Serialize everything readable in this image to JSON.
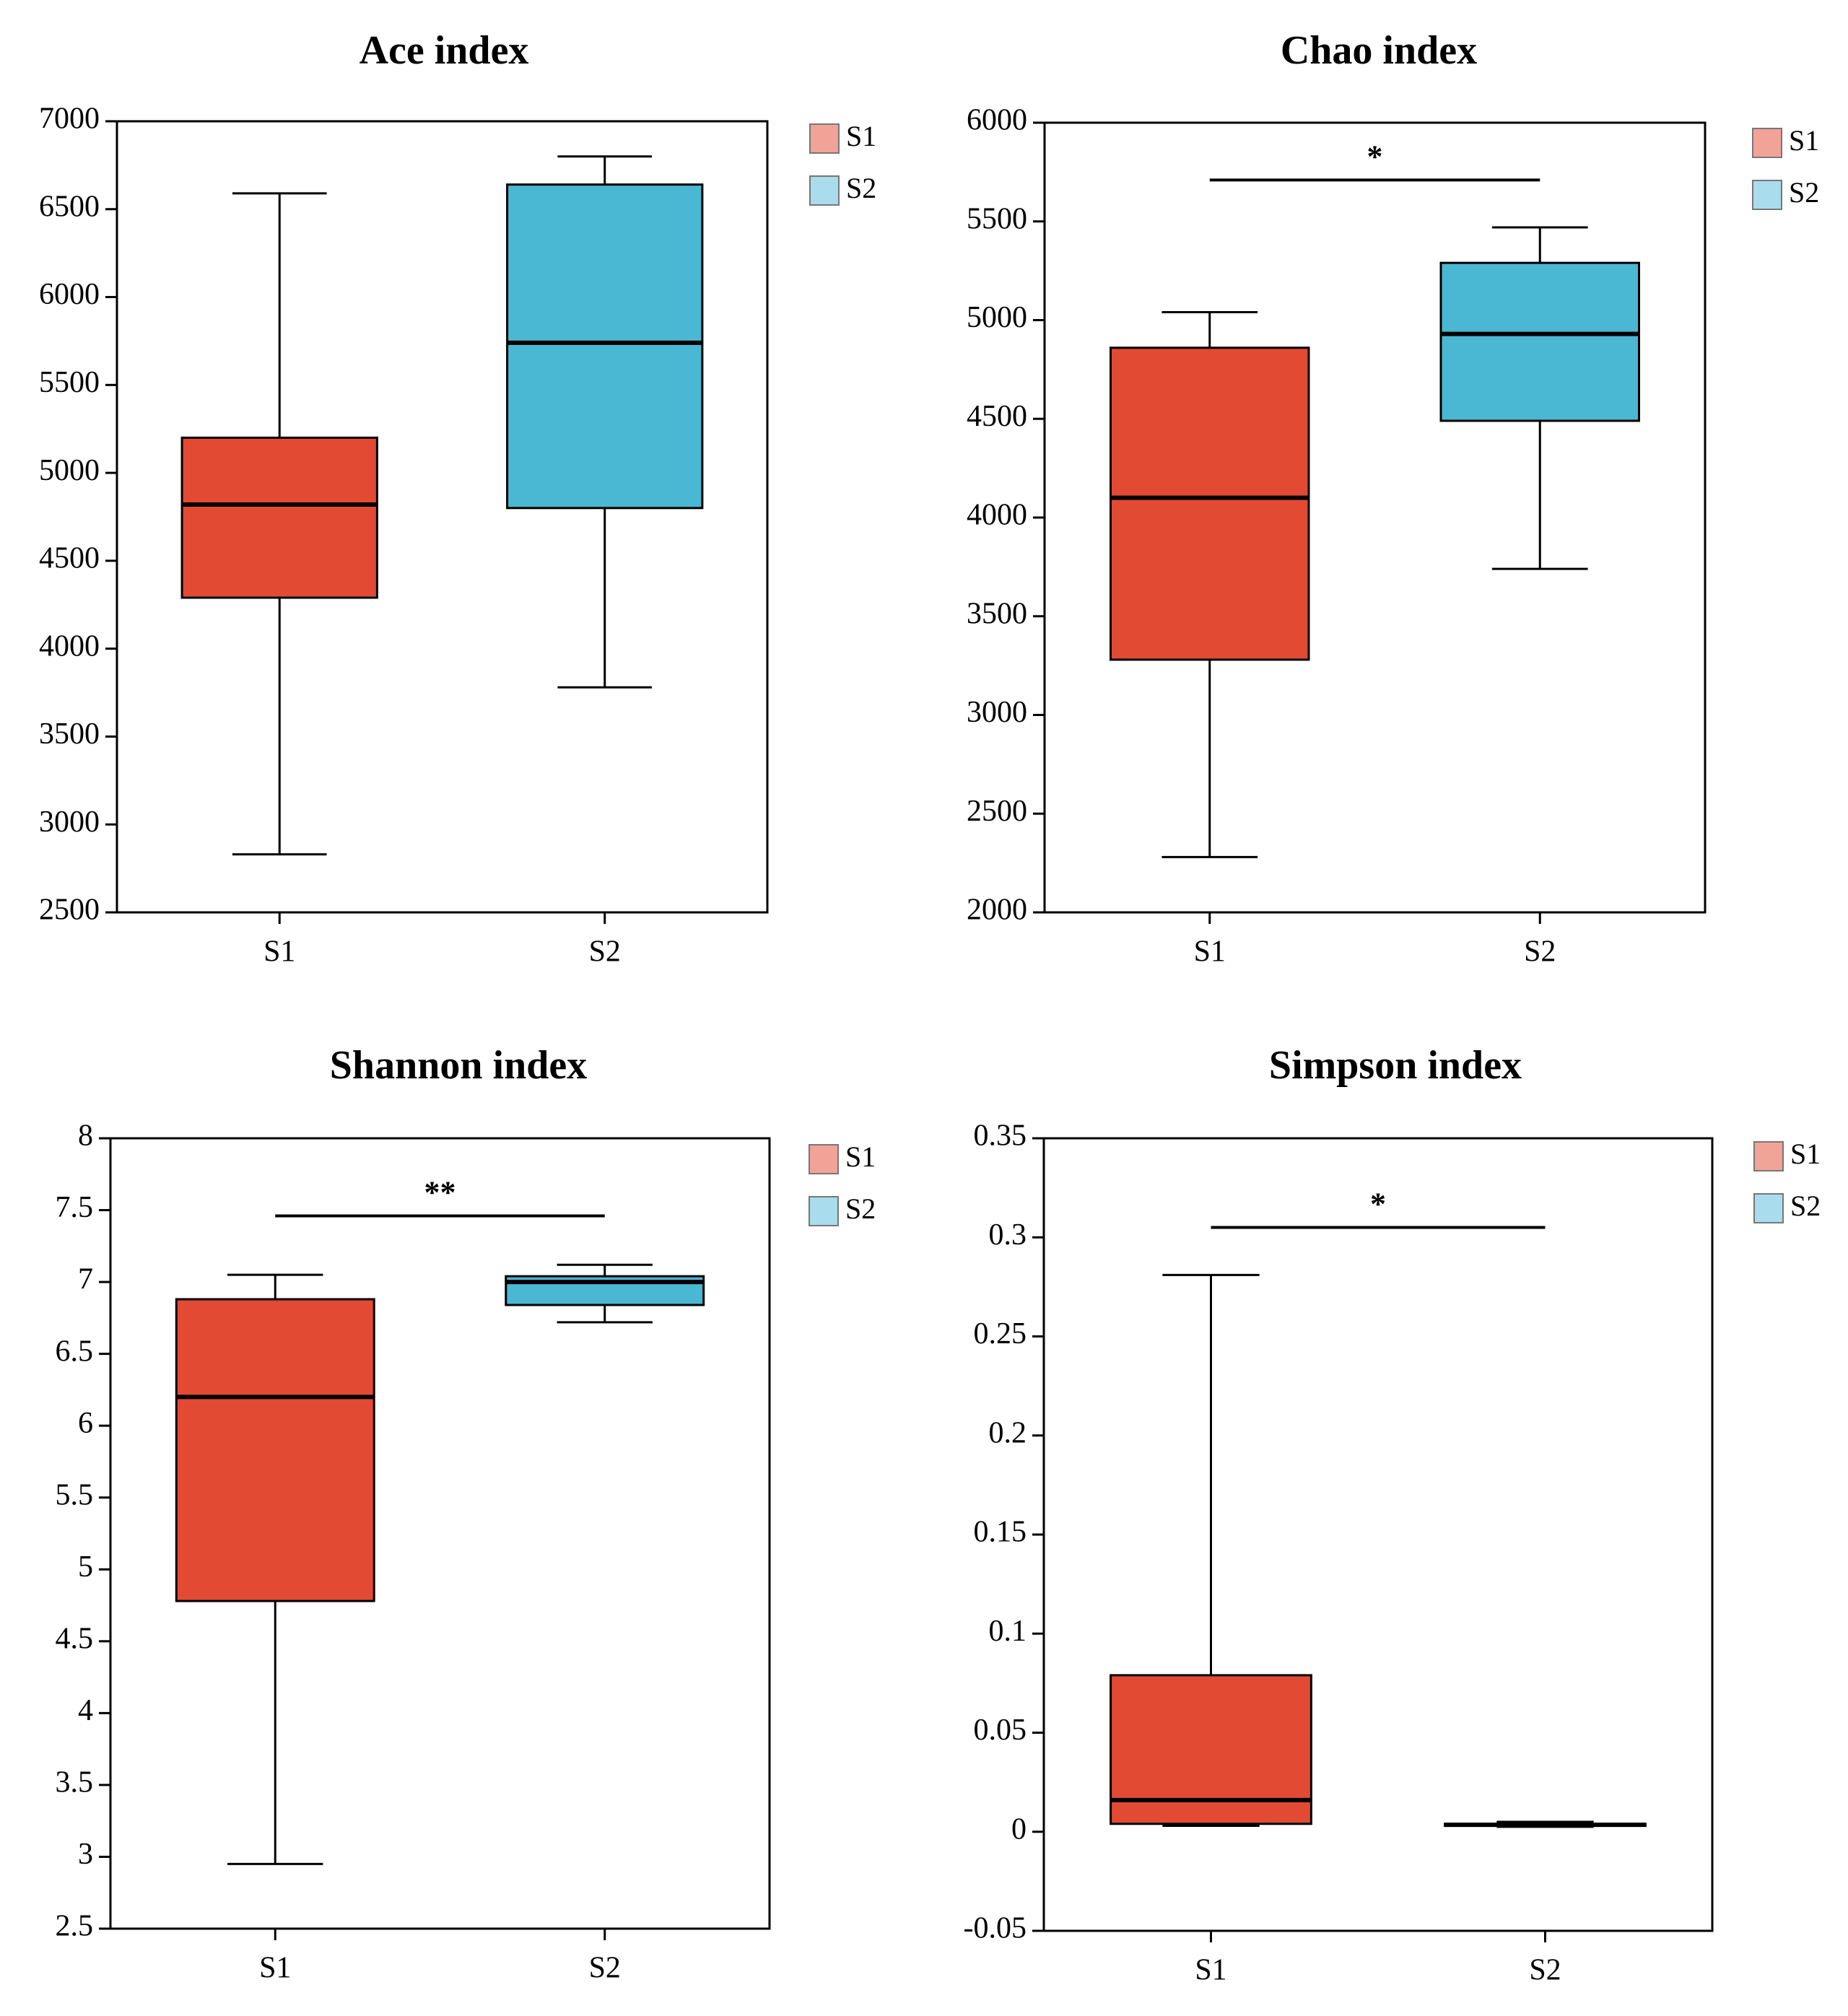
{
  "colors": {
    "S1": "#e34a33",
    "S2": "#4ab7d3",
    "S1_legend": "#f2a398",
    "S2_legend": "#a9dcec"
  },
  "chart_data": [
    {
      "type": "box",
      "title": "Ace index",
      "categories": [
        "S1",
        "S2"
      ],
      "ylim": [
        2500,
        7000
      ],
      "yticks": [
        "2500",
        "3000",
        "3500",
        "4000",
        "4500",
        "5000",
        "5500",
        "6000",
        "6500",
        "7000"
      ],
      "legend": [
        "S1",
        "S2"
      ],
      "legend_position": "top-right outside",
      "boxes": [
        {
          "name": "S1",
          "min": 2830,
          "q1": 4290,
          "median": 4820,
          "q3": 5200,
          "max": 6590
        },
        {
          "name": "S2",
          "min": 3780,
          "q1": 4800,
          "median": 5740,
          "q3": 6640,
          "max": 6800
        }
      ],
      "significance": null
    },
    {
      "type": "box",
      "title": "Chao index",
      "categories": [
        "S1",
        "S2"
      ],
      "ylim": [
        2000,
        6000
      ],
      "yticks": [
        "2000",
        "2500",
        "3000",
        "3500",
        "4000",
        "4500",
        "5000",
        "5500",
        "6000"
      ],
      "legend": [
        "S1",
        "S2"
      ],
      "legend_position": "top-right outside",
      "boxes": [
        {
          "name": "S1",
          "min": 2280,
          "q1": 3280,
          "median": 4100,
          "q3": 4860,
          "max": 5040
        },
        {
          "name": "S2",
          "min": 3740,
          "q1": 4490,
          "median": 4930,
          "q3": 5290,
          "max": 5470
        }
      ],
      "significance": {
        "label": "*",
        "y": 5710
      }
    },
    {
      "type": "box",
      "title": "Shannon index",
      "categories": [
        "S1",
        "S2"
      ],
      "ylim": [
        2.5,
        8
      ],
      "yticks": [
        "2.5",
        "3",
        "3.5",
        "4",
        "4.5",
        "5",
        "5.5",
        "6",
        "6.5",
        "7",
        "7.5",
        "8"
      ],
      "legend": [
        "S1",
        "S2"
      ],
      "legend_position": "top-right outside",
      "boxes": [
        {
          "name": "S1",
          "min": 2.95,
          "q1": 4.78,
          "median": 6.2,
          "q3": 6.88,
          "max": 7.05
        },
        {
          "name": "S2",
          "min": 6.72,
          "q1": 6.84,
          "median": 7.0,
          "q3": 7.04,
          "max": 7.12
        }
      ],
      "significance": {
        "label": "**",
        "y": 7.46
      }
    },
    {
      "type": "box",
      "title": "Simpson index",
      "categories": [
        "S1",
        "S2"
      ],
      "ylim": [
        -0.05,
        0.35
      ],
      "yticks": [
        "-0.05",
        "0",
        "0.05",
        "0.1",
        "0.15",
        "0.2",
        "0.25",
        "0.3",
        "0.35"
      ],
      "legend": [
        "S1",
        "S2"
      ],
      "legend_position": "top-right outside",
      "boxes": [
        {
          "name": "S1",
          "min": 0.003,
          "q1": 0.004,
          "median": 0.016,
          "q3": 0.079,
          "max": 0.281
        },
        {
          "name": "S2",
          "min": 0.0025,
          "q1": 0.003,
          "median": 0.0035,
          "q3": 0.004,
          "max": 0.005
        }
      ],
      "significance": {
        "label": "*",
        "y": 0.305
      }
    }
  ]
}
